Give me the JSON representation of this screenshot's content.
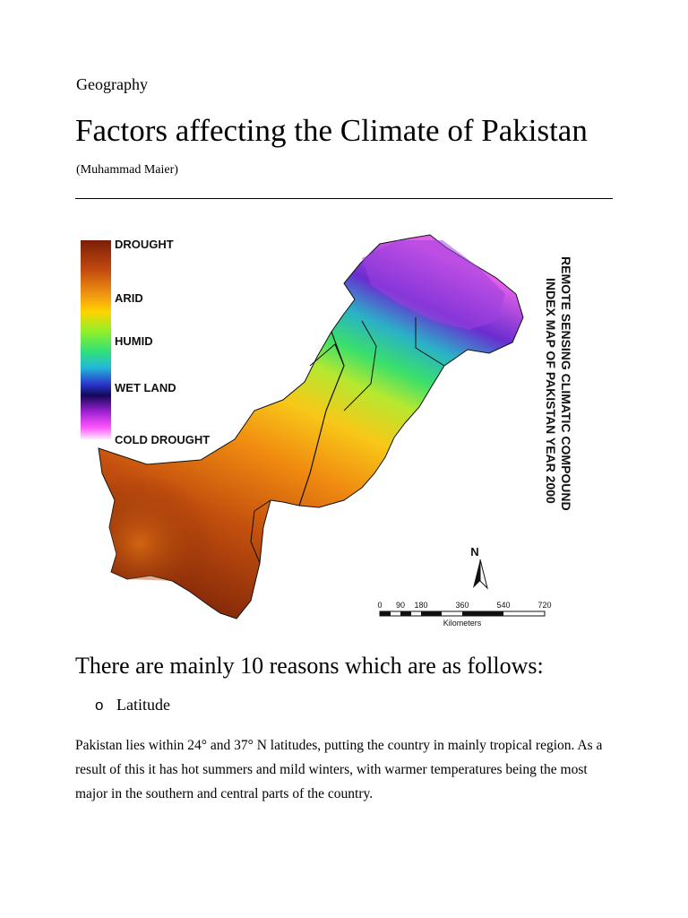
{
  "document": {
    "category": "Geography",
    "title": "Factors affecting the Climate of Pakistan",
    "author": "(Muhammad Maier)",
    "map": {
      "title_line1": "REMOTE SENSING  CLIMATIC COMPOUND",
      "title_line2": "INDEX MAP OF PAKISTAN YEAR 2000",
      "legend": [
        "DROUGHT",
        "ARID",
        "HUMID",
        "WET LAND",
        "COLD DROUGHT"
      ],
      "north_label": "N",
      "scale_ticks": [
        "0",
        "90",
        "180",
        "360",
        "540",
        "720"
      ],
      "scale_unit": "Kilometers",
      "colors": {
        "drought": "#8b2a0a",
        "arid": "#ffd400",
        "humid": "#3fe0a0",
        "wet_land": "#1a0a6e",
        "cold_drought": "#ff66ff"
      }
    },
    "section_heading": "There are mainly 10 reasons which are as follows:",
    "bullet_marker": "o",
    "bullet_item": "Latitude",
    "paragraph": "Pakistan lies within 24° and 37° N latitudes, putting the country in mainly tropical region. As a result of this it has hot summers and mild winters, with warmer temperatures being the most major in the southern and central parts of the country."
  }
}
